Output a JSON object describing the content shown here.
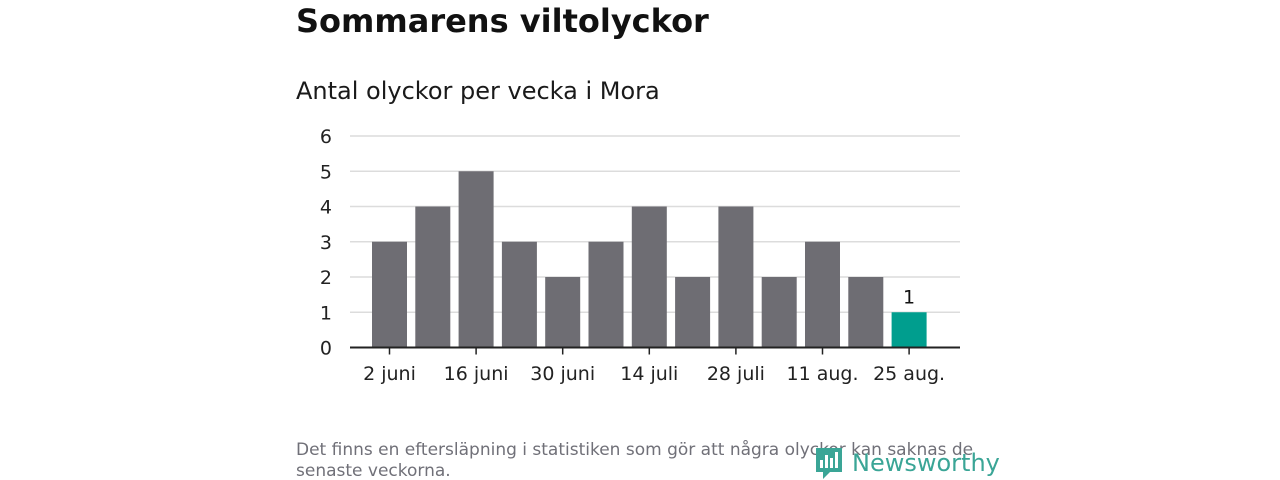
{
  "title": "Sommarens viltolyckor",
  "subtitle": "Antal olyckor per vecka i Mora",
  "footnote": "Det finns en eftersläpning i statistiken som gör att några olyckor kan saknas de senaste veckorna.",
  "logo": {
    "text": "Newsworthy",
    "icon": "newsworthy-logo-icon"
  },
  "colors": {
    "bar": "#6e6d73",
    "highlight": "#009e8e",
    "grid": "#dcdcdc",
    "axis": "#222222",
    "logo": "#3aa596"
  },
  "chart_data": {
    "type": "bar",
    "categories": [
      "2 juni",
      "9 juni",
      "16 juni",
      "23 juni",
      "30 juni",
      "7 juli",
      "14 juli",
      "21 juli",
      "28 juli",
      "4 aug.",
      "11 aug.",
      "18 aug.",
      "25 aug."
    ],
    "values": [
      3,
      4,
      5,
      3,
      2,
      3,
      4,
      2,
      4,
      2,
      3,
      2,
      1
    ],
    "x_tick_labels": [
      "2 juni",
      "16 juni",
      "30 juni",
      "14 juli",
      "28 juli",
      "11 aug.",
      "25 aug."
    ],
    "y_ticks": [
      0,
      1,
      2,
      3,
      4,
      5,
      6
    ],
    "ylim": [
      0,
      6
    ],
    "highlight_index": 12,
    "data_labels": [
      {
        "index": 12,
        "text": "1"
      }
    ],
    "grid": true,
    "xlabel": "",
    "ylabel": ""
  }
}
